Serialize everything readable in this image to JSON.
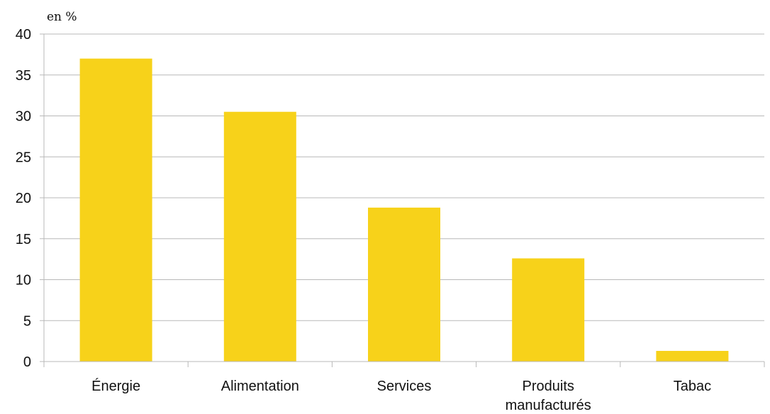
{
  "chart_data": {
    "type": "bar",
    "unit_label": "en %",
    "categories": [
      "Énergie",
      "Alimentation",
      "Services",
      "Produits manufacturés",
      "Tabac"
    ],
    "category_lines": [
      [
        "Énergie"
      ],
      [
        "Alimentation"
      ],
      [
        "Services"
      ],
      [
        "Produits",
        "manufacturés"
      ],
      [
        "Tabac"
      ]
    ],
    "values": [
      37,
      30.5,
      18.8,
      12.6,
      1.3
    ],
    "ylim": [
      0,
      40
    ],
    "yticks": [
      0,
      5,
      10,
      15,
      20,
      25,
      30,
      35,
      40
    ],
    "grid": true,
    "bar_color": "#f7d21a",
    "grid_color": "#b8b8b8",
    "axis_color": "#b8b8b8"
  }
}
